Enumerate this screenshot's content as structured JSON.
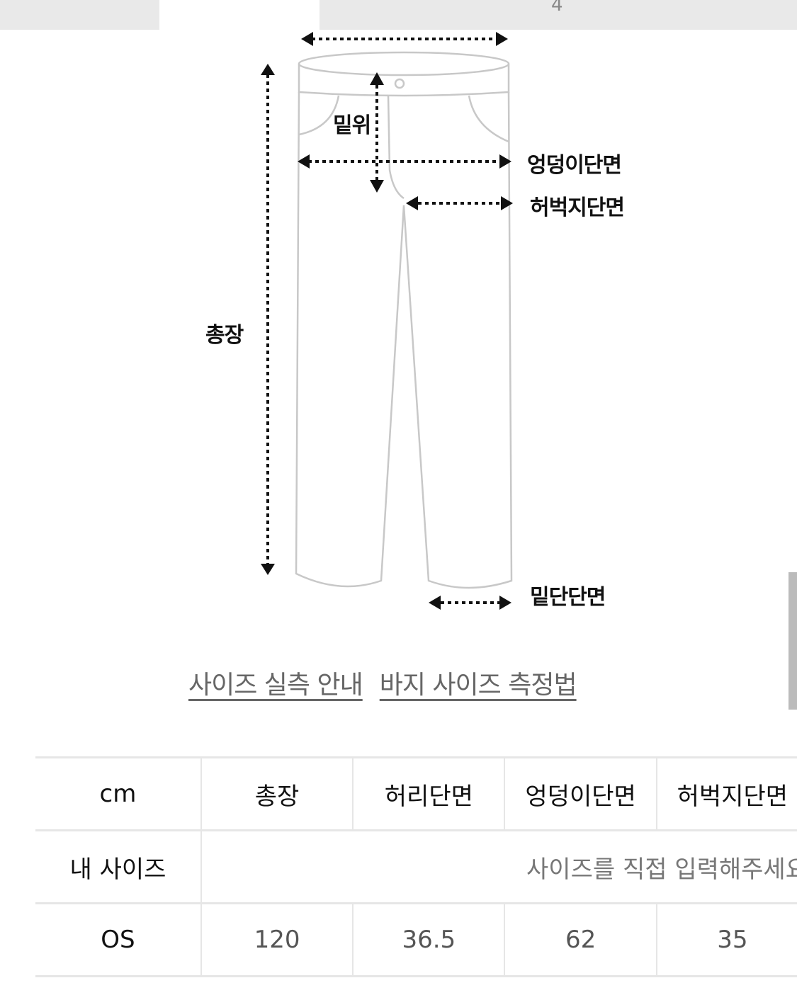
{
  "tabs": {
    "active_number": "4"
  },
  "diagram": {
    "labels": {
      "rise": "밑위",
      "hip": "엉덩이단면",
      "thigh": "허벅지단면",
      "length": "총장",
      "hem": "밑단단면"
    }
  },
  "links": {
    "size_guide": "사이즈 실측 안내",
    "measure_method": "바지 사이즈 측정법"
  },
  "table": {
    "headers": [
      "cm",
      "총장",
      "허리단면",
      "엉덩이단면",
      "허벅지단면"
    ],
    "my_size": {
      "label": "내 사이즈",
      "placeholder": "사이즈를 직접 입력해주세요"
    },
    "rows": [
      {
        "size": "OS",
        "values": [
          "120",
          "36.5",
          "62",
          "35"
        ]
      }
    ]
  }
}
